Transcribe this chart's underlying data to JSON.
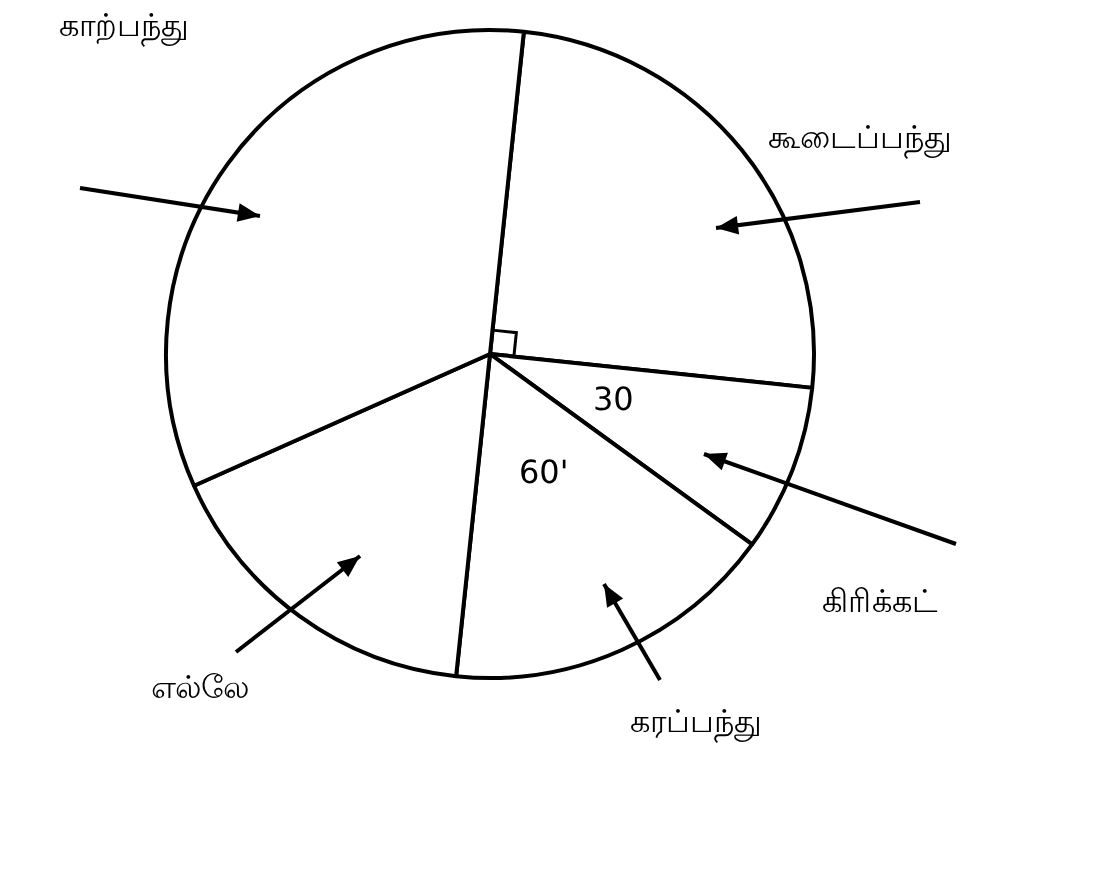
{
  "chart_data": {
    "type": "pie",
    "categories": [
      "கூடைப்பந்து",
      "கிரிக்கட்",
      "கரப்பந்து",
      "எல்லே",
      "காற்பந்து"
    ],
    "values": [
      90,
      30,
      60,
      60,
      120
    ],
    "colors": [
      "#ffffff",
      "#ffffff",
      "#ffffff",
      "#ffffff",
      "#ffffff"
    ],
    "value_labels": [
      null,
      "30",
      "60'",
      null,
      null
    ]
  }
}
